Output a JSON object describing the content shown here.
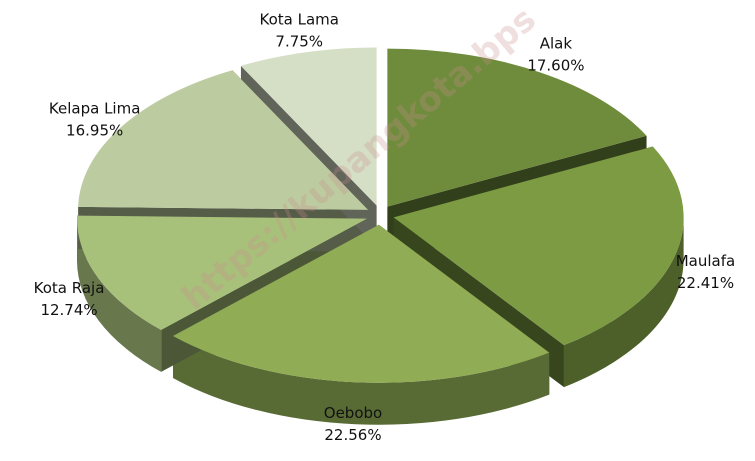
{
  "chart_data": {
    "type": "pie",
    "categories": [
      "Alak",
      "Maulafa",
      "Oebobo",
      "Kota Raja",
      "Kelapa Lima",
      "Kota Lama"
    ],
    "values": [
      17.6,
      22.41,
      22.56,
      12.74,
      16.95,
      7.75
    ],
    "value_labels": [
      "17.60%",
      "22.41%",
      "22.56%",
      "12.74%",
      "16.95%",
      "7.75%"
    ],
    "colors": [
      "#6f8c3c",
      "#7c9b42",
      "#90ad55",
      "#a8c17a",
      "#bccca0",
      "#d5dfc5"
    ],
    "watermark": "https://kupangkota.bps"
  }
}
